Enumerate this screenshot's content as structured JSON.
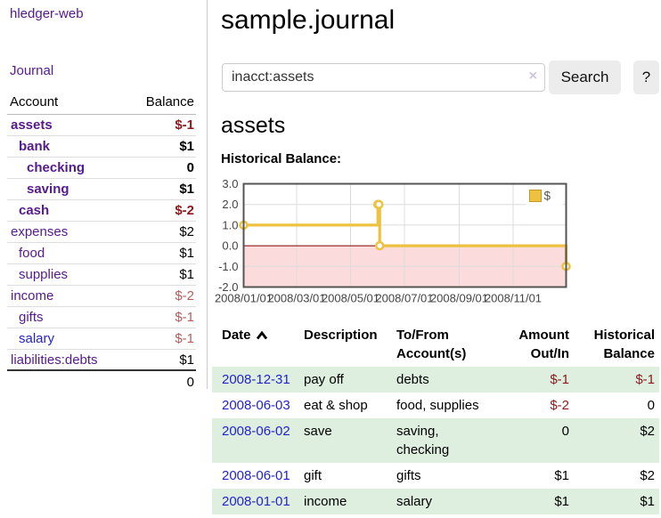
{
  "colors": {
    "link_purple": "#551A8B",
    "link_blue": "#2323CC",
    "negative_red": "#8B1A1A",
    "negative_muted": "#B75C5C",
    "row_green": "#DFEFDF",
    "series_gold": "#EDC240"
  },
  "sidebar": {
    "brand": "hledger-web",
    "journal_link": "Journal",
    "accounts": {
      "headers": [
        "Account",
        "Balance"
      ],
      "rows": [
        {
          "name": "assets",
          "indent": 1,
          "bold": true,
          "balance": "$-1",
          "style": "neg-strong"
        },
        {
          "name": "bank",
          "indent": 2,
          "bold": true,
          "balance": "$1",
          "style": ""
        },
        {
          "name": "checking",
          "indent": 3,
          "bold": true,
          "balance": "0",
          "style": ""
        },
        {
          "name": "saving",
          "indent": 3,
          "bold": true,
          "balance": "$1",
          "style": ""
        },
        {
          "name": "cash",
          "indent": 2,
          "bold": true,
          "balance": "$-2",
          "style": "neg-strong"
        },
        {
          "name": "expenses",
          "indent": 1,
          "bold": false,
          "balance": "$2",
          "style": ""
        },
        {
          "name": "food",
          "indent": 2,
          "bold": false,
          "balance": "$1",
          "style": ""
        },
        {
          "name": "supplies",
          "indent": 2,
          "bold": false,
          "balance": "$1",
          "style": ""
        },
        {
          "name": "income",
          "indent": 1,
          "bold": false,
          "balance": "$-2",
          "style": "neg-muted"
        },
        {
          "name": "gifts",
          "indent": 2,
          "bold": false,
          "balance": "$-1",
          "style": "neg-muted"
        },
        {
          "name": "salary",
          "indent": 2,
          "bold": false,
          "blue": true,
          "balance": "$-1",
          "style": "neg-muted"
        },
        {
          "name": "liabilities:debts",
          "indent": 1,
          "bold": false,
          "balance": "$1",
          "style": ""
        }
      ],
      "total": "0"
    }
  },
  "main": {
    "title": "sample.journal",
    "search": {
      "value": "inacct:assets",
      "clear_icon": "×",
      "search_button": "Search",
      "help_button": "?"
    },
    "account_heading": "assets",
    "chart_title": "Historical Balance:"
  },
  "chart_data": {
    "type": "line",
    "step": true,
    "title": "Historical Balance:",
    "series": [
      {
        "name": "$",
        "color": "#EDC240",
        "points": [
          [
            "2008-01-01",
            1.0
          ],
          [
            "2008-06-01",
            2.0
          ],
          [
            "2008-06-02",
            2.0
          ],
          [
            "2008-06-03",
            0.0
          ],
          [
            "2008-12-31",
            -1.0
          ]
        ]
      }
    ],
    "x_range": [
      "2008-01-01",
      "2008-12-31"
    ],
    "x_tick_labels": [
      "2008/01/01",
      "2008/03/01",
      "2008/05/01",
      "2008/07/01",
      "2008/09/01",
      "2008/11/01"
    ],
    "y_ticks": [
      3.0,
      2.0,
      1.0,
      0.0,
      -1.0,
      -2.0
    ],
    "ylim": [
      -2.0,
      3.0
    ],
    "grid": true,
    "legend_position": "top-right",
    "legend": [
      "$"
    ],
    "zero_line_color": "#800000",
    "negative_region_color": "#FBDBDB",
    "gridline_color": "#dcdcdc",
    "border_color": "#545454",
    "axis_text_color": "#444444"
  },
  "register": {
    "headers": {
      "date": "Date",
      "description": "Description",
      "accounts": "To/From Account(s)",
      "amount": "Amount Out/In",
      "balance": "Historical Balance"
    },
    "rows": [
      {
        "date": "2008-12-31",
        "description": "pay off",
        "accounts": "debts",
        "amount": "$-1",
        "amount_neg": true,
        "balance": "$-1",
        "balance_neg": true,
        "shaded": true
      },
      {
        "date": "2008-06-03",
        "description": "eat & shop",
        "accounts": "food, supplies",
        "amount": "$-2",
        "amount_neg": true,
        "balance": "0",
        "balance_neg": false,
        "shaded": false
      },
      {
        "date": "2008-06-02",
        "description": "save",
        "accounts": "saving, checking",
        "amount": "0",
        "amount_neg": false,
        "balance": "$2",
        "balance_neg": false,
        "shaded": true
      },
      {
        "date": "2008-06-01",
        "description": "gift",
        "accounts": "gifts",
        "amount": "$1",
        "amount_neg": false,
        "balance": "$2",
        "balance_neg": false,
        "shaded": false
      },
      {
        "date": "2008-01-01",
        "description": "income",
        "accounts": "salary",
        "amount": "$1",
        "amount_neg": false,
        "balance": "$1",
        "balance_neg": false,
        "shaded": true
      }
    ]
  }
}
